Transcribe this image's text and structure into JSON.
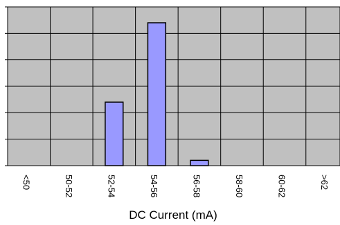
{
  "chart_data": {
    "type": "bar",
    "categories": [
      "<50",
      "50-52",
      "52-54",
      "54-56",
      "56-58",
      "58-60",
      "60-62",
      ">62"
    ],
    "values": [
      0,
      0,
      12,
      27,
      1,
      0,
      0,
      0
    ],
    "title": "",
    "xlabel": "DC Current (mA)",
    "ylabel": "",
    "ylim": [
      0,
      30
    ],
    "y_tick_step": 5,
    "grid": true,
    "colors": {
      "plot_background": "#c0c0c0",
      "bar_fill": "#9999ff",
      "bar_stroke": "#000000",
      "gridline": "#000000"
    }
  }
}
